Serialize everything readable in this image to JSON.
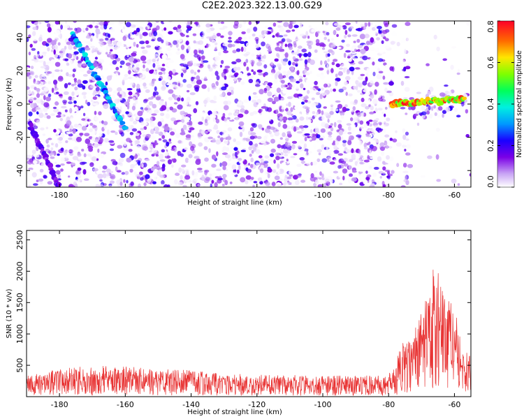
{
  "title": "C2E2.2023.322.13.00.G29",
  "chart_data": [
    {
      "type": "heatmap",
      "xlabel": "Height of straight line (km)",
      "ylabel": "Frequency (Hz)",
      "xlim": [
        -190,
        -55
      ],
      "ylim": [
        -50,
        50
      ],
      "xticks": [
        -180,
        -160,
        -140,
        -120,
        -100,
        -80,
        -60
      ],
      "yticks": [
        -40,
        -20,
        0,
        20,
        40
      ],
      "colorbar": {
        "label": "Normalized spectral amplitude",
        "range": [
          0.0,
          0.8
        ],
        "ticks": [
          "0.0",
          "0.2",
          "0.4",
          "0.6",
          "0.8"
        ]
      },
      "features": [
        {
          "name": "strong-tone",
          "x": [
            -79,
            -57
          ],
          "y": [
            0,
            3
          ],
          "level": 0.8
        },
        {
          "name": "descending-trace",
          "x": [
            -176,
            -160
          ],
          "y": [
            42,
            -15
          ],
          "level": 0.4
        },
        {
          "name": "descending-trace",
          "x": [
            -189,
            -180
          ],
          "y": [
            -12,
            -50
          ],
          "level": 0.2
        }
      ]
    },
    {
      "type": "line",
      "xlabel": "Height of straight line (km)",
      "ylabel": "SNR (10 * v/v)",
      "xlim": [
        -190,
        -55
      ],
      "ylim": [
        0,
        2650
      ],
      "xticks": [
        -180,
        -160,
        -140,
        -120,
        -100,
        -80,
        -60
      ],
      "yticks": [
        500,
        1000,
        1500,
        2000,
        2500
      ],
      "color": "#e83232",
      "series": [
        {
          "x": [
            -190,
            -185,
            -180,
            -175,
            -170,
            -165,
            -160,
            -155,
            -150,
            -145,
            -140,
            -135,
            -130,
            -125,
            -120,
            -115,
            -110,
            -105,
            -100,
            -95,
            -90,
            -85,
            -80,
            -78,
            -76,
            -74,
            -72,
            -70,
            -68,
            -66,
            -64,
            -62,
            -60,
            -58,
            -56
          ],
          "values": [
            320,
            380,
            420,
            460,
            440,
            480,
            520,
            450,
            430,
            420,
            400,
            380,
            360,
            350,
            340,
            330,
            330,
            330,
            320,
            320,
            320,
            330,
            330,
            550,
            800,
            900,
            1100,
            1300,
            1600,
            2100,
            1700,
            1500,
            1400,
            900,
            700
          ]
        }
      ]
    }
  ]
}
